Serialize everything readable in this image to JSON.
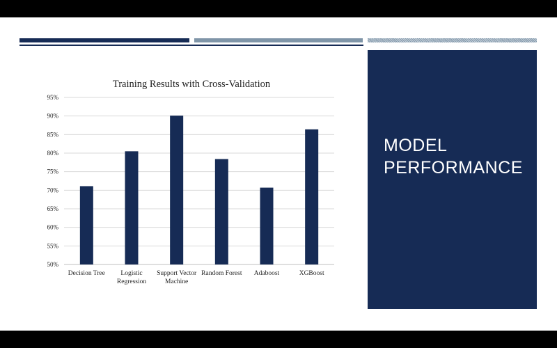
{
  "slide": {
    "title": "MODEL PERFORMANCE",
    "colors": {
      "accent": "#162b55",
      "secondary": "#7f95a8",
      "background": "#ffffff"
    }
  },
  "chart_data": {
    "type": "bar",
    "title": "Training Results with Cross-Validation",
    "categories": [
      "Decision Tree",
      "Logistic Regression",
      "Support Vector Machine",
      "Random Forest",
      "Adaboost",
      "XGBoost"
    ],
    "category_lines": [
      [
        "Decision Tree"
      ],
      [
        "Logistic",
        "Regression"
      ],
      [
        "Support Vector",
        "Machine"
      ],
      [
        "Random Forest"
      ],
      [
        "Adaboost"
      ],
      [
        "XGBoost"
      ]
    ],
    "values": [
      0.711,
      0.805,
      0.901,
      0.784,
      0.707,
      0.864
    ],
    "ylim": [
      0.5,
      0.95
    ],
    "yticks": [
      "50%",
      "55%",
      "60%",
      "65%",
      "70%",
      "75%",
      "80%",
      "85%",
      "90%",
      "95%"
    ],
    "grid": true,
    "bar_color": "#162b55",
    "xlabel": "",
    "ylabel": ""
  }
}
